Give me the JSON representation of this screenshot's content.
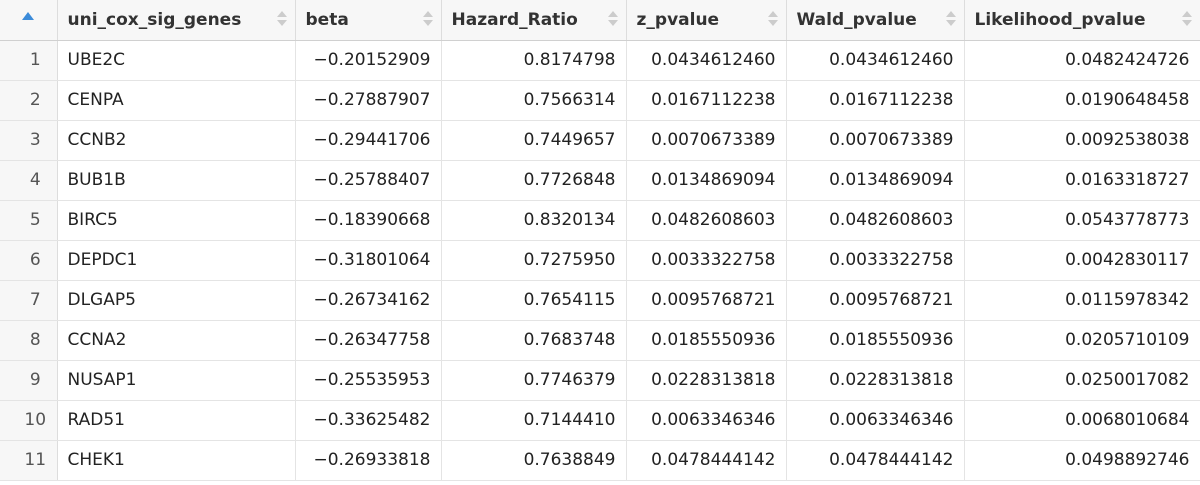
{
  "table": {
    "columns": [
      {
        "label": "",
        "sorted": "ascending"
      },
      {
        "label": "uni_cox_sig_genes"
      },
      {
        "label": "beta"
      },
      {
        "label": "Hazard_Ratio"
      },
      {
        "label": "z_pvalue"
      },
      {
        "label": "Wald_pvalue"
      },
      {
        "label": "Likelihood_pvalue"
      }
    ],
    "rows": [
      [
        "1",
        "UBE2C",
        "−0.20152909",
        "0.8174798",
        "0.0434612460",
        "0.0434612460",
        "0.0482424726"
      ],
      [
        "2",
        "CENPA",
        "−0.27887907",
        "0.7566314",
        "0.0167112238",
        "0.0167112238",
        "0.0190648458"
      ],
      [
        "3",
        "CCNB2",
        "−0.29441706",
        "0.7449657",
        "0.0070673389",
        "0.0070673389",
        "0.0092538038"
      ],
      [
        "4",
        "BUB1B",
        "−0.25788407",
        "0.7726848",
        "0.0134869094",
        "0.0134869094",
        "0.0163318727"
      ],
      [
        "5",
        "BIRC5",
        "−0.18390668",
        "0.8320134",
        "0.0482608603",
        "0.0482608603",
        "0.0543778773"
      ],
      [
        "6",
        "DEPDC1",
        "−0.31801064",
        "0.7275950",
        "0.0033322758",
        "0.0033322758",
        "0.0042830117"
      ],
      [
        "7",
        "DLGAP5",
        "−0.26734162",
        "0.7654115",
        "0.0095768721",
        "0.0095768721",
        "0.0115978342"
      ],
      [
        "8",
        "CCNA2",
        "−0.26347758",
        "0.7683748",
        "0.0185550936",
        "0.0185550936",
        "0.0205710109"
      ],
      [
        "9",
        "NUSAP1",
        "−0.25535953",
        "0.7746379",
        "0.0228313818",
        "0.0228313818",
        "0.0250017082"
      ],
      [
        "10",
        "RAD51",
        "−0.33625482",
        "0.7144410",
        "0.0063346346",
        "0.0063346346",
        "0.0068010684"
      ],
      [
        "11",
        "CHEK1",
        "−0.26933818",
        "0.7638849",
        "0.0478444142",
        "0.0478444142",
        "0.0498892746"
      ]
    ]
  },
  "colors": {
    "sort_active": "#3b8bd9",
    "sort_inactive": "#cccccc",
    "header_bg": "#f7f7f7",
    "grid_line": "#e4e4e4"
  },
  "icons": {
    "active_sort": "sort-ascending-icon",
    "inactive_sort": "sort-icon"
  }
}
